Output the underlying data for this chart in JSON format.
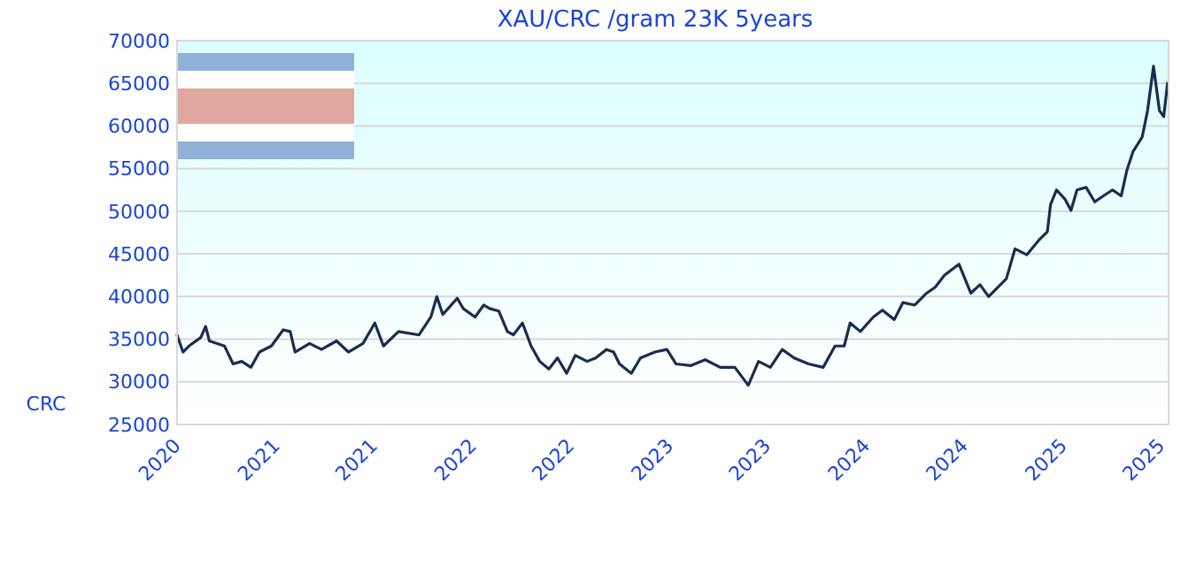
{
  "chart_data": {
    "type": "line",
    "title": "XAU/CRC /gram 23K 5years",
    "ylabel": "CRC",
    "x": [
      "2020-08-01",
      "2020-08-12",
      "2020-08-23",
      "2020-09-14",
      "2020-09-23",
      "2020-09-30",
      "2020-10-28",
      "2020-11-13",
      "2020-11-29",
      "2020-12-16",
      "2021-01-01",
      "2021-01-23",
      "2021-02-14",
      "2021-02-27",
      "2021-03-08",
      "2021-04-04",
      "2021-04-26",
      "2021-05-24",
      "2021-06-15",
      "2021-07-12",
      "2021-08-03",
      "2021-08-19",
      "2021-09-16",
      "2021-10-24",
      "2021-11-15",
      "2021-11-26",
      "2021-12-07",
      "2022-01-03",
      "2022-01-14",
      "2022-02-05",
      "2022-02-21",
      "2022-03-04",
      "2022-03-21",
      "2022-04-06",
      "2022-04-17",
      "2022-05-04",
      "2022-05-20",
      "2022-06-05",
      "2022-06-22",
      "2022-07-08",
      "2022-07-25",
      "2022-08-10",
      "2022-09-01",
      "2022-09-17",
      "2022-10-07",
      "2022-10-20",
      "2022-10-31",
      "2022-11-22",
      "2022-12-09",
      "2023-01-05",
      "2023-01-27",
      "2023-02-13",
      "2023-03-12",
      "2023-04-08",
      "2023-05-06",
      "2023-06-02",
      "2023-06-27",
      "2023-07-16",
      "2023-08-07",
      "2023-08-29",
      "2023-09-20",
      "2023-10-17",
      "2023-11-13",
      "2023-12-05",
      "2023-12-22",
      "2024-01-02",
      "2024-01-21",
      "2024-02-14",
      "2024-03-02",
      "2024-03-24",
      "2024-04-09",
      "2024-05-01",
      "2024-05-23",
      "2024-06-08",
      "2024-06-25",
      "2024-07-22",
      "2024-08-13",
      "2024-08-30",
      "2024-09-15",
      "2024-10-18",
      "2024-11-03",
      "2024-11-25",
      "2024-12-17",
      "2025-01-02",
      "2025-01-08",
      "2025-01-19",
      "2025-02-04",
      "2025-02-15",
      "2025-02-26",
      "2025-03-15",
      "2025-03-31",
      "2025-04-16",
      "2025-05-03",
      "2025-05-19",
      "2025-05-30",
      "2025-06-10",
      "2025-06-27",
      "2025-07-07",
      "2025-07-18",
      "2025-07-29",
      "2025-08-06",
      "2025-08-13"
    ],
    "series": [
      {
        "color": "#1a2d4f",
        "values": [
          35500,
          33500,
          34200,
          35200,
          36500,
          34800,
          34200,
          32100,
          32400,
          31700,
          33500,
          34200,
          36100,
          35900,
          33500,
          34500,
          33800,
          34800,
          33500,
          34500,
          36900,
          34200,
          35900,
          35500,
          37600,
          40000,
          37900,
          39800,
          38600,
          37600,
          39000,
          38600,
          38300,
          35900,
          35500,
          36900,
          34200,
          32400,
          31500,
          32800,
          31000,
          33100,
          32400,
          32800,
          33800,
          33500,
          32100,
          31000,
          32800,
          33500,
          33800,
          32100,
          31900,
          32600,
          31700,
          31700,
          29600,
          32400,
          31700,
          33800,
          32800,
          32100,
          31700,
          34200,
          34200,
          36900,
          35900,
          37600,
          38400,
          37300,
          39300,
          39000,
          40400,
          41100,
          42500,
          43800,
          40400,
          41400,
          40000,
          42100,
          45600,
          44900,
          46600,
          47600,
          50800,
          52500,
          51400,
          50100,
          52500,
          52800,
          51100,
          51800,
          52500,
          51800,
          54900,
          57000,
          58700,
          61800,
          67000,
          61800,
          61100,
          65000
        ]
      }
    ],
    "xlim": [
      "2020-08-01",
      "2025-08-15"
    ],
    "xticks": [
      {
        "value": "2020-08-01",
        "label": "2020"
      },
      {
        "value": "2021-02-01",
        "label": "2021"
      },
      {
        "value": "2021-08-01",
        "label": "2021"
      },
      {
        "value": "2022-02-01",
        "label": "2022"
      },
      {
        "value": "2022-08-01",
        "label": "2022"
      },
      {
        "value": "2023-02-01",
        "label": "2023"
      },
      {
        "value": "2023-08-01",
        "label": "2023"
      },
      {
        "value": "2024-02-01",
        "label": "2024"
      },
      {
        "value": "2024-08-01",
        "label": "2024"
      },
      {
        "value": "2025-02-01",
        "label": "2025"
      },
      {
        "value": "2025-08-01",
        "label": "2025"
      }
    ],
    "ylim": [
      25000,
      70000
    ],
    "yticks": [
      25000,
      30000,
      35000,
      40000,
      45000,
      50000,
      55000,
      60000,
      65000,
      70000
    ],
    "grid": "y",
    "marker": "none",
    "line_style": "solid"
  }
}
